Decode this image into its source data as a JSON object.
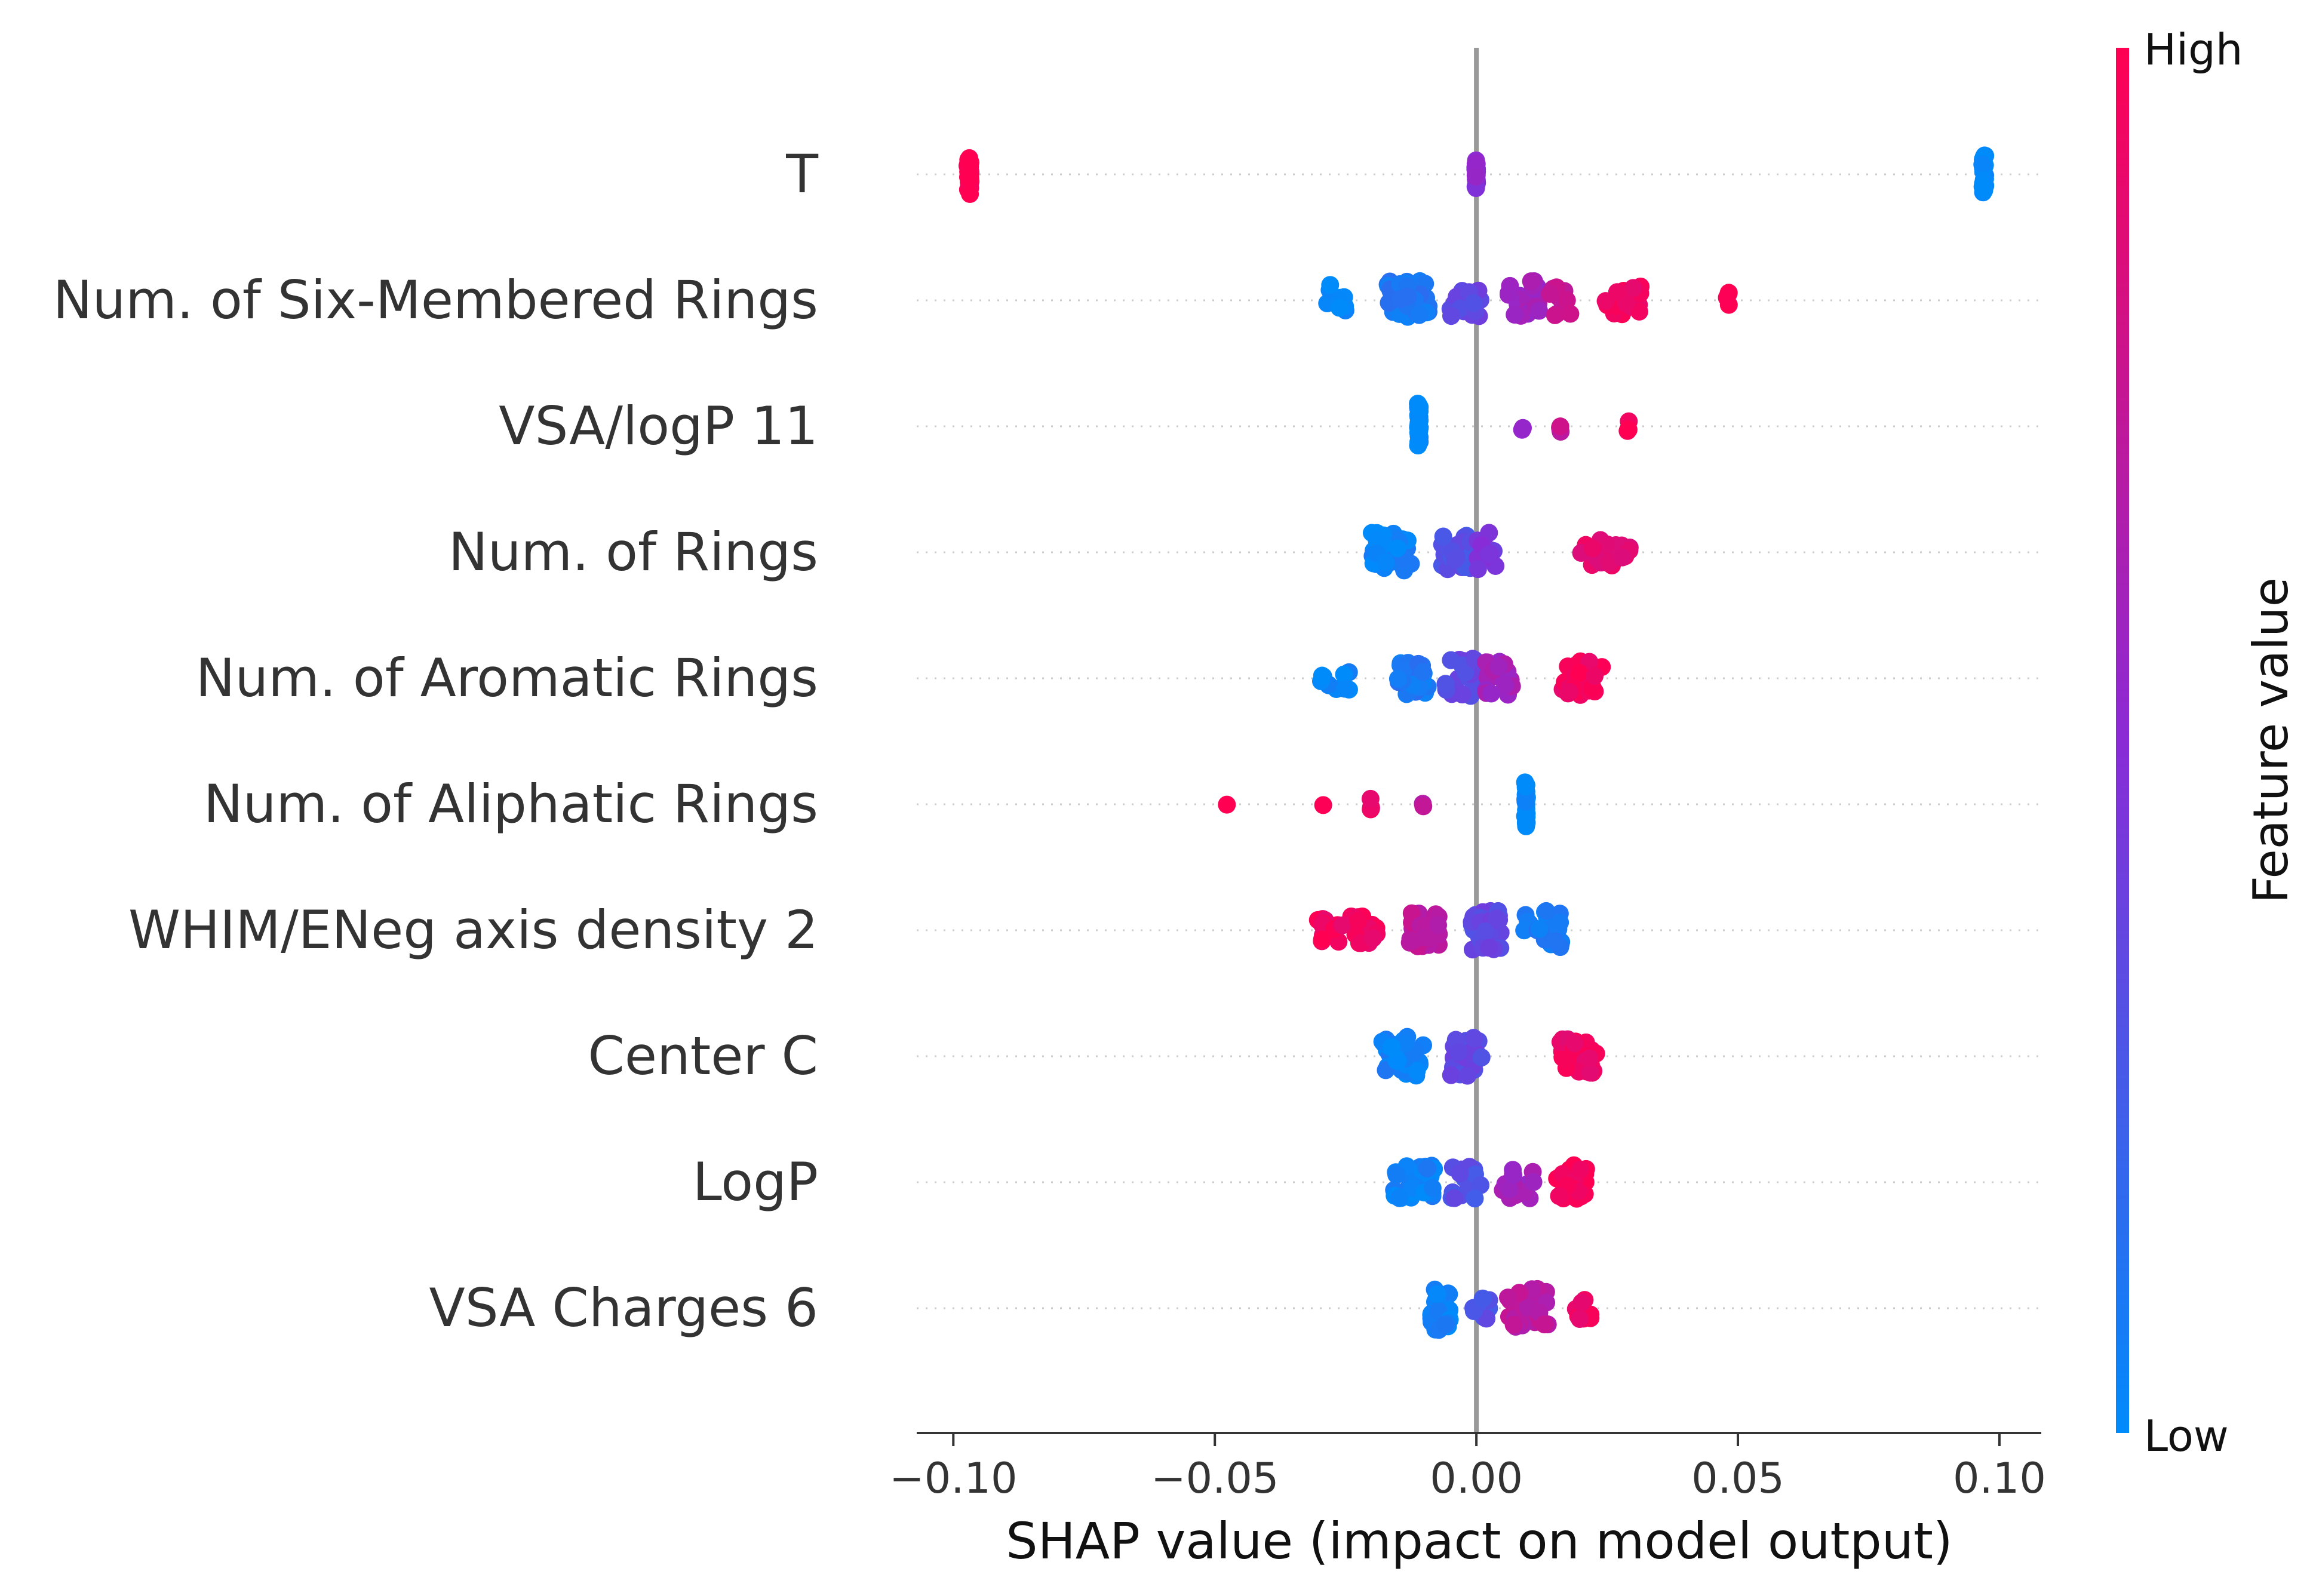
{
  "chart_data": {
    "type": "scatter",
    "subtype": "shap-beeswarm",
    "xlabel": "SHAP value (impact on model output)",
    "xlim": [
      -0.107,
      0.108
    ],
    "xticks": [
      -0.1,
      -0.05,
      0.0,
      0.05,
      0.1
    ],
    "xtick_labels": [
      "−0.10",
      "−0.05",
      "0.00",
      "0.05",
      "0.10"
    ],
    "grid": false,
    "colorbar": {
      "label": "Feature value",
      "high_label": "High",
      "low_label": "Low",
      "low_color": "#008bfb",
      "mid_color": "#8a2bd6",
      "high_color": "#ff0052"
    },
    "axis_color": "#333333",
    "zero_line_color": "#999999",
    "features": [
      {
        "name": "T",
        "clusters": [
          {
            "x": -0.097,
            "spread": 0.0003,
            "n": 34,
            "color": 1.0,
            "width": 0.35
          },
          {
            "x": 0.0,
            "spread": 0.0002,
            "n": 26,
            "color": 0.5,
            "width": 0.25
          },
          {
            "x": 0.097,
            "spread": 0.0003,
            "n": 34,
            "color": 0.0,
            "width": 0.35
          }
        ]
      },
      {
        "name": "Num. of Six-Membered Rings",
        "clusters": [
          {
            "x": -0.027,
            "spread": 0.002,
            "n": 10,
            "color": 0.02,
            "width": 0.3
          },
          {
            "x": -0.013,
            "spread": 0.004,
            "n": 40,
            "color": 0.1,
            "width": 0.35
          },
          {
            "x": -0.002,
            "spread": 0.003,
            "n": 18,
            "color": 0.35,
            "width": 0.3
          },
          {
            "x": 0.009,
            "spread": 0.003,
            "n": 24,
            "color": 0.6,
            "width": 0.35
          },
          {
            "x": 0.016,
            "spread": 0.002,
            "n": 10,
            "color": 0.75,
            "width": 0.3
          },
          {
            "x": 0.028,
            "spread": 0.004,
            "n": 18,
            "color": 0.92,
            "width": 0.25
          },
          {
            "x": 0.048,
            "spread": 0.0003,
            "n": 4,
            "color": 1.0,
            "width": 0.15
          }
        ]
      },
      {
        "name": "VSA/logP 11",
        "clusters": [
          {
            "x": -0.011,
            "spread": 0.0002,
            "n": 30,
            "color": 0.0,
            "width": 0.4
          },
          {
            "x": 0.009,
            "spread": 0.0003,
            "n": 2,
            "color": 0.6,
            "width": 0.08
          },
          {
            "x": 0.016,
            "spread": 0.0003,
            "n": 4,
            "color": 0.75,
            "width": 0.12
          },
          {
            "x": 0.029,
            "spread": 0.0003,
            "n": 4,
            "color": 1.0,
            "width": 0.12
          }
        ]
      },
      {
        "name": "Num. of Rings",
        "clusters": [
          {
            "x": -0.016,
            "spread": 0.004,
            "n": 36,
            "color": 0.05,
            "width": 0.35
          },
          {
            "x": -0.004,
            "spread": 0.003,
            "n": 26,
            "color": 0.3,
            "width": 0.3
          },
          {
            "x": 0.002,
            "spread": 0.002,
            "n": 12,
            "color": 0.45,
            "width": 0.35
          },
          {
            "x": 0.025,
            "spread": 0.005,
            "n": 26,
            "color": 0.9,
            "width": 0.25
          }
        ]
      },
      {
        "name": "Num. of Aromatic Rings",
        "clusters": [
          {
            "x": -0.027,
            "spread": 0.003,
            "n": 10,
            "color": 0.02,
            "width": 0.25
          },
          {
            "x": -0.012,
            "spread": 0.003,
            "n": 30,
            "color": 0.1,
            "width": 0.3
          },
          {
            "x": -0.003,
            "spread": 0.003,
            "n": 22,
            "color": 0.35,
            "width": 0.35
          },
          {
            "x": 0.004,
            "spread": 0.003,
            "n": 20,
            "color": 0.6,
            "width": 0.3
          },
          {
            "x": 0.02,
            "spread": 0.004,
            "n": 30,
            "color": 0.95,
            "width": 0.3
          }
        ]
      },
      {
        "name": "Num. of Aliphatic Rings",
        "clusters": [
          {
            "x": -0.048,
            "spread": 0.0003,
            "n": 1,
            "color": 1.0,
            "width": 0.05
          },
          {
            "x": -0.029,
            "spread": 0.0003,
            "n": 1,
            "color": 0.95,
            "width": 0.05
          },
          {
            "x": -0.02,
            "spread": 0.0005,
            "n": 4,
            "color": 0.92,
            "width": 0.1
          },
          {
            "x": -0.01,
            "spread": 0.0003,
            "n": 2,
            "color": 0.7,
            "width": 0.08
          },
          {
            "x": 0.0095,
            "spread": 0.0002,
            "n": 30,
            "color": 0.0,
            "width": 0.4
          }
        ]
      },
      {
        "name": "WHIM/ENeg axis density 2",
        "clusters": [
          {
            "x": -0.025,
            "spread": 0.006,
            "n": 34,
            "color": 0.95,
            "width": 0.25
          },
          {
            "x": -0.01,
            "spread": 0.003,
            "n": 30,
            "color": 0.72,
            "width": 0.3
          },
          {
            "x": 0.002,
            "spread": 0.003,
            "n": 34,
            "color": 0.35,
            "width": 0.35
          },
          {
            "x": 0.013,
            "spread": 0.004,
            "n": 22,
            "color": 0.08,
            "width": 0.35
          }
        ]
      },
      {
        "name": "Center C",
        "clusters": [
          {
            "x": -0.014,
            "spread": 0.004,
            "n": 40,
            "color": 0.05,
            "width": 0.35
          },
          {
            "x": -0.002,
            "spread": 0.003,
            "n": 26,
            "color": 0.35,
            "width": 0.35
          },
          {
            "x": 0.02,
            "spread": 0.004,
            "n": 30,
            "color": 0.93,
            "width": 0.3
          }
        ]
      },
      {
        "name": "LogP",
        "clusters": [
          {
            "x": -0.012,
            "spread": 0.004,
            "n": 36,
            "color": 0.05,
            "width": 0.3
          },
          {
            "x": -0.002,
            "spread": 0.003,
            "n": 20,
            "color": 0.3,
            "width": 0.3
          },
          {
            "x": 0.008,
            "spread": 0.003,
            "n": 16,
            "color": 0.6,
            "width": 0.3
          },
          {
            "x": 0.018,
            "spread": 0.003,
            "n": 30,
            "color": 0.98,
            "width": 0.3
          }
        ]
      },
      {
        "name": "VSA Charges 6",
        "clusters": [
          {
            "x": -0.007,
            "spread": 0.002,
            "n": 32,
            "color": 0.05,
            "width": 0.4
          },
          {
            "x": 0.001,
            "spread": 0.002,
            "n": 8,
            "color": 0.3,
            "width": 0.2
          },
          {
            "x": 0.01,
            "spread": 0.004,
            "n": 36,
            "color": 0.7,
            "width": 0.35
          },
          {
            "x": 0.02,
            "spread": 0.002,
            "n": 10,
            "color": 0.95,
            "width": 0.2
          }
        ]
      }
    ]
  }
}
